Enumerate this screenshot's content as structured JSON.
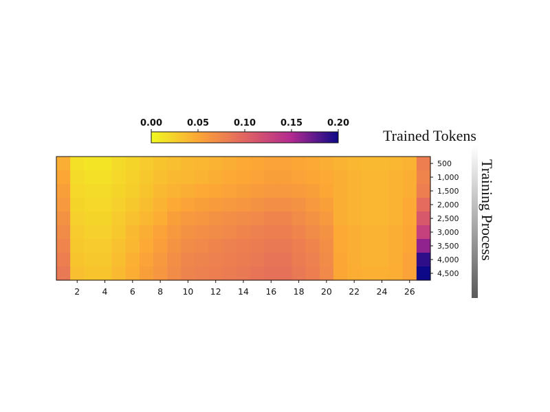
{
  "chart_data": {
    "type": "heatmap",
    "x": [
      1,
      2,
      3,
      4,
      5,
      6,
      7,
      8,
      9,
      10,
      11,
      12,
      13,
      14,
      15,
      16,
      17,
      18,
      19,
      20,
      21,
      22,
      23,
      24,
      25,
      26,
      27
    ],
    "x_tick_labels": [
      "2",
      "4",
      "6",
      "8",
      "10",
      "12",
      "14",
      "16",
      "18",
      "20",
      "22",
      "24",
      "26"
    ],
    "y_labels": [
      "500",
      "1,000",
      "1,500",
      "2,000",
      "2,500",
      "3,000",
      "3,500",
      "4,000",
      "4,500"
    ],
    "y_axis_label": "Training Process",
    "top_label": "Trained Tokens",
    "colorbar": {
      "vmin": 0.0,
      "vmax": 0.2,
      "tick_labels": [
        "0.00",
        "0.05",
        "0.10",
        "0.15",
        "0.20"
      ],
      "colormap": "plasma_r",
      "position": "top"
    },
    "values": [
      [
        0.045,
        0.015,
        0.012,
        0.012,
        0.018,
        0.022,
        0.028,
        0.032,
        0.035,
        0.038,
        0.04,
        0.042,
        0.045,
        0.048,
        0.05,
        0.052,
        0.052,
        0.05,
        0.048,
        0.045,
        0.042,
        0.04,
        0.038,
        0.038,
        0.04,
        0.042,
        0.08
      ],
      [
        0.05,
        0.018,
        0.015,
        0.015,
        0.02,
        0.024,
        0.03,
        0.035,
        0.038,
        0.04,
        0.042,
        0.045,
        0.048,
        0.05,
        0.052,
        0.055,
        0.055,
        0.052,
        0.05,
        0.048,
        0.045,
        0.042,
        0.04,
        0.04,
        0.042,
        0.045,
        0.075
      ],
      [
        0.055,
        0.02,
        0.018,
        0.018,
        0.022,
        0.026,
        0.032,
        0.038,
        0.042,
        0.045,
        0.048,
        0.05,
        0.052,
        0.055,
        0.058,
        0.06,
        0.06,
        0.058,
        0.055,
        0.05,
        0.045,
        0.042,
        0.04,
        0.04,
        0.042,
        0.045,
        0.08
      ],
      [
        0.06,
        0.022,
        0.02,
        0.02,
        0.025,
        0.03,
        0.036,
        0.042,
        0.048,
        0.052,
        0.055,
        0.058,
        0.06,
        0.062,
        0.065,
        0.068,
        0.068,
        0.065,
        0.06,
        0.055,
        0.045,
        0.042,
        0.04,
        0.04,
        0.042,
        0.048,
        0.095
      ],
      [
        0.065,
        0.025,
        0.022,
        0.022,
        0.028,
        0.034,
        0.04,
        0.046,
        0.055,
        0.06,
        0.062,
        0.065,
        0.068,
        0.07,
        0.072,
        0.075,
        0.075,
        0.07,
        0.065,
        0.06,
        0.045,
        0.042,
        0.04,
        0.04,
        0.042,
        0.048,
        0.11
      ],
      [
        0.07,
        0.028,
        0.025,
        0.025,
        0.03,
        0.038,
        0.045,
        0.052,
        0.06,
        0.065,
        0.068,
        0.07,
        0.072,
        0.075,
        0.078,
        0.08,
        0.08,
        0.075,
        0.07,
        0.065,
        0.048,
        0.045,
        0.042,
        0.042,
        0.045,
        0.05,
        0.13
      ],
      [
        0.075,
        0.03,
        0.028,
        0.028,
        0.034,
        0.04,
        0.048,
        0.056,
        0.064,
        0.07,
        0.072,
        0.075,
        0.078,
        0.08,
        0.082,
        0.085,
        0.085,
        0.08,
        0.075,
        0.068,
        0.048,
        0.045,
        0.042,
        0.042,
        0.045,
        0.05,
        0.16
      ],
      [
        0.08,
        0.032,
        0.03,
        0.03,
        0.036,
        0.044,
        0.052,
        0.06,
        0.068,
        0.074,
        0.076,
        0.078,
        0.08,
        0.082,
        0.085,
        0.088,
        0.088,
        0.082,
        0.078,
        0.07,
        0.05,
        0.045,
        0.042,
        0.042,
        0.045,
        0.052,
        0.19
      ],
      [
        0.085,
        0.035,
        0.032,
        0.032,
        0.038,
        0.046,
        0.055,
        0.062,
        0.07,
        0.076,
        0.078,
        0.08,
        0.082,
        0.085,
        0.088,
        0.09,
        0.09,
        0.085,
        0.08,
        0.072,
        0.05,
        0.046,
        0.044,
        0.044,
        0.046,
        0.052,
        0.2
      ]
    ]
  }
}
